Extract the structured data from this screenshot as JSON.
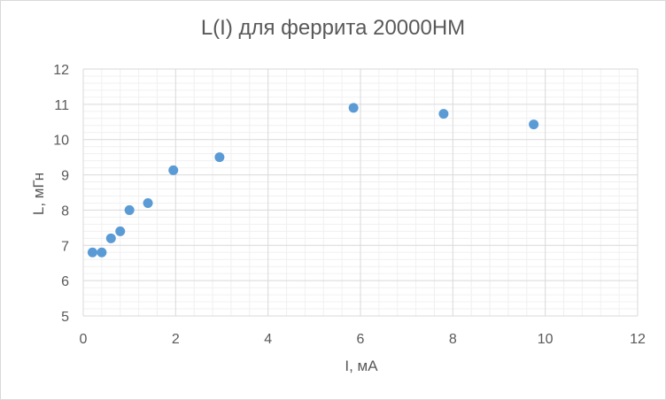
{
  "chart_data": {
    "type": "scatter",
    "title": "L(I) для феррита 20000НМ",
    "xlabel": "I, мА",
    "ylabel": "L, мГн",
    "xlim": [
      0,
      12
    ],
    "ylim": [
      5,
      12
    ],
    "x_ticks": [
      "0",
      "2",
      "4",
      "6",
      "8",
      "10",
      "12"
    ],
    "y_ticks": [
      "5",
      "6",
      "7",
      "8",
      "9",
      "10",
      "11",
      "12"
    ],
    "grid": "major and minor",
    "legend": "none",
    "marker_color": "#5b9bd5",
    "series": [
      {
        "x": [
          0.2,
          0.4,
          0.6,
          0.8,
          1.0,
          1.4,
          1.95,
          2.95,
          5.85,
          7.8,
          9.75
        ],
        "y": [
          6.8,
          6.8,
          7.2,
          7.4,
          8.0,
          8.2,
          9.13,
          9.5,
          10.9,
          10.73,
          10.43
        ]
      }
    ]
  }
}
